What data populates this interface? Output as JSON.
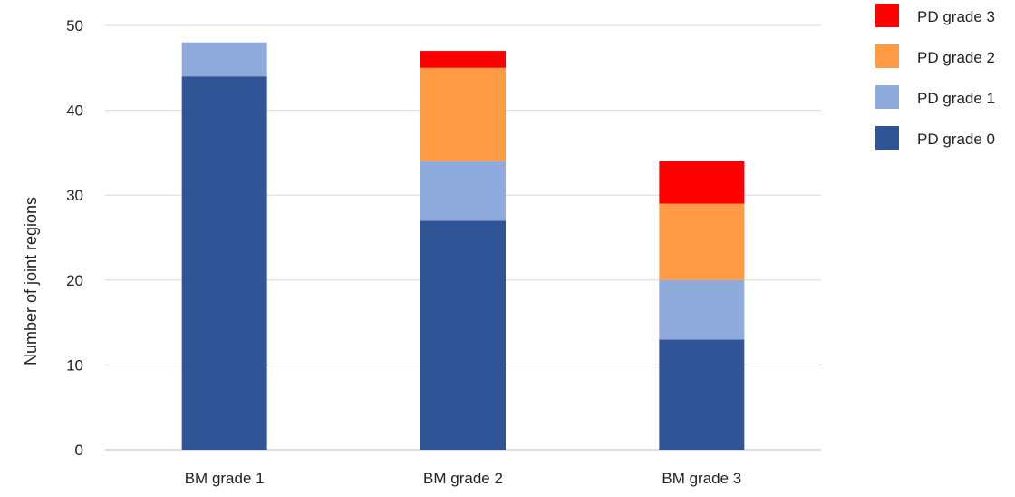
{
  "chart_data": {
    "type": "bar",
    "stacked": true,
    "title": "",
    "xlabel": "",
    "ylabel": "Number of joint regions",
    "ylim": [
      0,
      50
    ],
    "yticks": [
      0,
      10,
      20,
      30,
      40,
      50
    ],
    "grid": true,
    "legend_position": "top-right",
    "categories": [
      "BM grade 1",
      "BM grade 2",
      "BM grade 3"
    ],
    "series": [
      {
        "name": "PD grade 0",
        "color": "#2F5597",
        "values": [
          44,
          27,
          13
        ]
      },
      {
        "name": "PD grade 1",
        "color": "#8FAADC",
        "values": [
          4,
          7,
          7
        ]
      },
      {
        "name": "PD grade 2",
        "color": "#FF9A45",
        "values": [
          0,
          11,
          9
        ]
      },
      {
        "name": "PD grade 3",
        "color": "#FF0000",
        "values": [
          0,
          2,
          5
        ]
      }
    ],
    "legend_order": [
      "PD grade 3",
      "PD grade 2",
      "PD grade 1",
      "PD grade 0"
    ]
  }
}
